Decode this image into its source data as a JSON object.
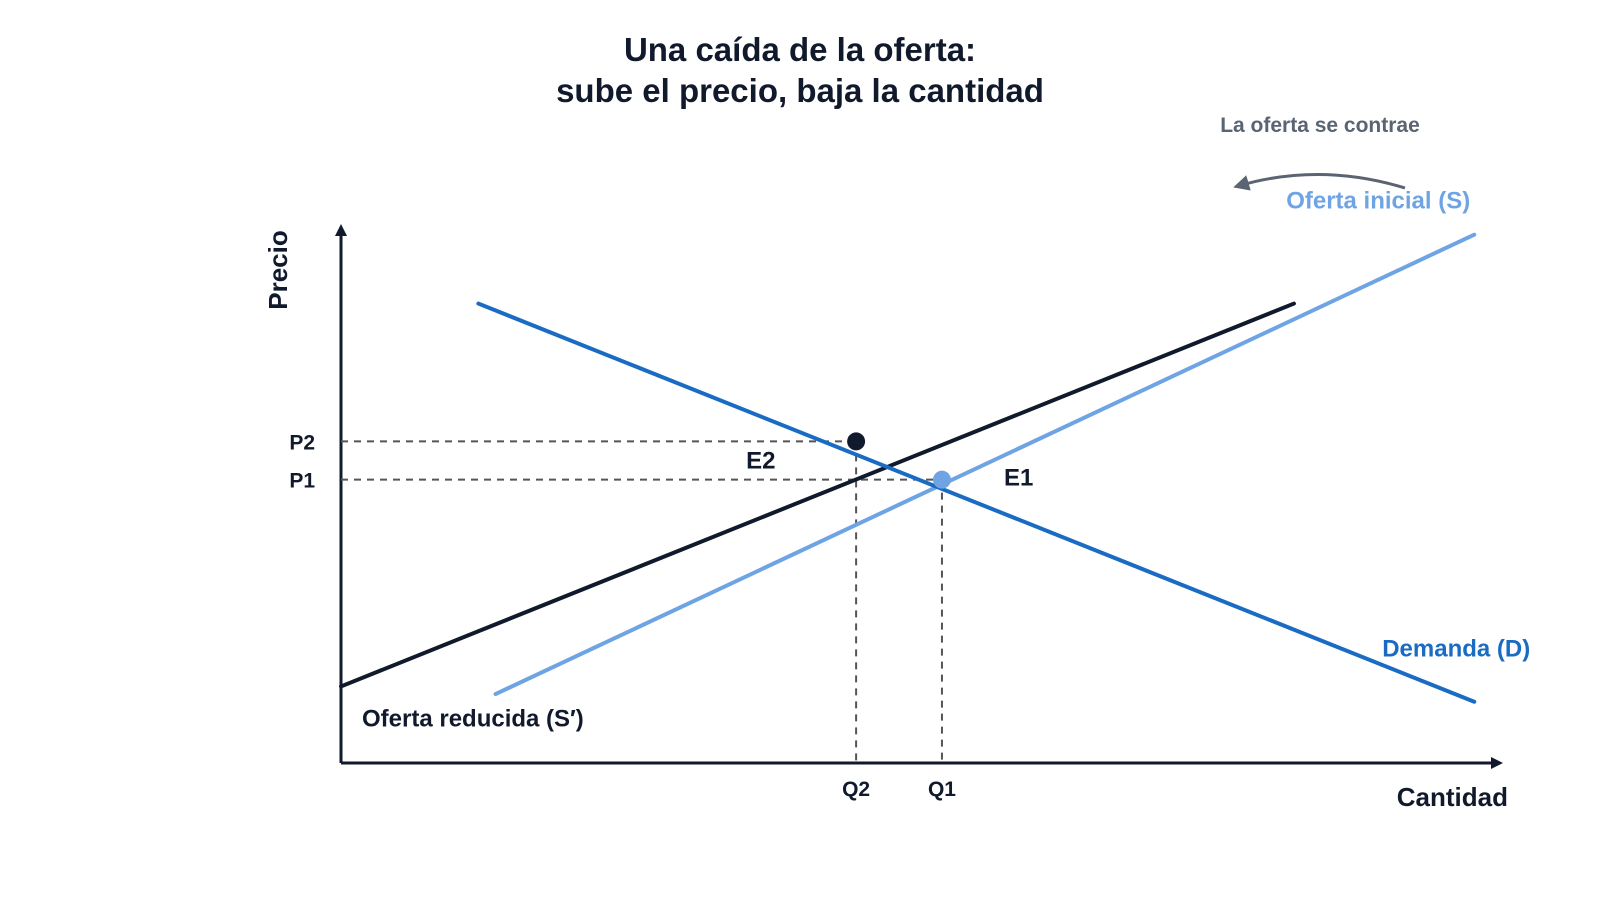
{
  "title_line1": "Una caída de la oferta:",
  "title_line2": "sube el precio, baja la cantidad",
  "colors": {
    "text": "#111a2c",
    "supply_initial": "#6fa4e4",
    "supply_reduced": "#111a2c",
    "demand": "#1a6bc4",
    "guide": "#555555",
    "annotation": "#5a6472"
  },
  "chart_data": {
    "type": "line",
    "title": "Una caída de la oferta: sube el precio, baja la cantidad",
    "xlabel": "Cantidad",
    "ylabel": "Precio",
    "x_ticks": [
      "Q2",
      "Q1"
    ],
    "y_ticks": [
      "P2",
      "P1"
    ],
    "series": [
      {
        "name": "Oferta inicial (S)",
        "color": "#6fa4e4",
        "points": [
          [
            1.8,
            0.9
          ],
          [
            13.2,
            6.9
          ]
        ]
      },
      {
        "name": "Oferta reducida (S′)",
        "color": "#111a2c",
        "points": [
          [
            0,
            1.0
          ],
          [
            11.1,
            6.0
          ]
        ]
      },
      {
        "name": "Demanda (D)",
        "color": "#1a6bc4",
        "points": [
          [
            1.6,
            6.0
          ],
          [
            13.2,
            0.8
          ]
        ]
      }
    ],
    "points": [
      {
        "label": "E2",
        "x": 6.0,
        "y": 4.2,
        "color": "#111a2c"
      },
      {
        "label": "E1",
        "x": 7.0,
        "y": 3.7,
        "color": "#6fa4e4"
      }
    ],
    "guides": {
      "Q2": 6.0,
      "Q1": 7.0,
      "P2": 4.2,
      "P1": 3.7
    },
    "annotation": "La oferta se contrae",
    "legend": "none",
    "grid": false
  }
}
